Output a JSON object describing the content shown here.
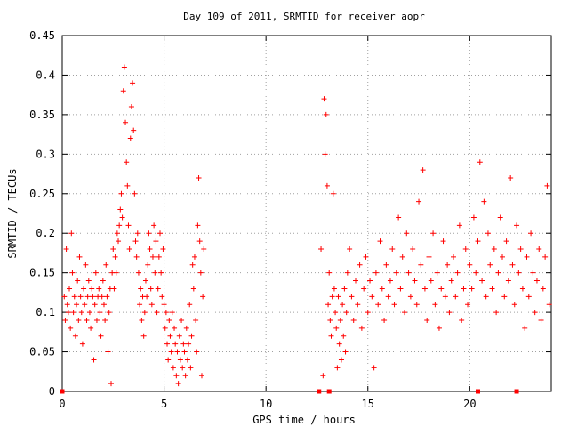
{
  "chart_data": {
    "type": "scatter",
    "title": "Day 109 of 2011, SRMTID for receiver aopr",
    "xlabel": "GPS time / hours",
    "ylabel": "SRMTID / TECUs",
    "xlim": [
      0,
      24
    ],
    "ylim": [
      0,
      0.45
    ],
    "x_ticks": [
      0,
      5,
      10,
      15,
      20
    ],
    "x_tick_labels": [
      "0",
      "5",
      "10",
      "15",
      "20"
    ],
    "y_ticks": [
      0,
      0.05,
      0.1,
      0.15,
      0.2,
      0.25,
      0.3,
      0.35,
      0.4,
      0.45
    ],
    "y_tick_labels": [
      "0",
      "0.05",
      "0.1",
      "0.15",
      "0.2",
      "0.25",
      "0.3",
      "0.35",
      "0.4",
      "0.45"
    ],
    "grid": true,
    "marker": "+",
    "marker_color": "#ff0000",
    "square_markers_at_zero": [
      0.0,
      12.6,
      13.1,
      20.4,
      22.3
    ],
    "series": [
      {
        "values": [
          [
            0.1,
            0.12
          ],
          [
            0.15,
            0.09
          ],
          [
            0.2,
            0.18
          ],
          [
            0.25,
            0.11
          ],
          [
            0.3,
            0.1
          ],
          [
            0.35,
            0.13
          ],
          [
            0.4,
            0.08
          ],
          [
            0.45,
            0.2
          ],
          [
            0.5,
            0.15
          ],
          [
            0.55,
            0.1
          ],
          [
            0.6,
            0.12
          ],
          [
            0.65,
            0.07
          ],
          [
            0.7,
            0.11
          ],
          [
            0.75,
            0.14
          ],
          [
            0.8,
            0.09
          ],
          [
            0.85,
            0.17
          ],
          [
            0.9,
            0.12
          ],
          [
            0.95,
            0.1
          ],
          [
            1.0,
            0.06
          ],
          [
            1.05,
            0.13
          ],
          [
            1.1,
            0.11
          ],
          [
            1.15,
            0.16
          ],
          [
            1.2,
            0.09
          ],
          [
            1.25,
            0.12
          ],
          [
            1.3,
            0.14
          ],
          [
            1.35,
            0.1
          ],
          [
            1.4,
            0.08
          ],
          [
            1.45,
            0.13
          ],
          [
            1.5,
            0.12
          ],
          [
            1.55,
            0.04
          ],
          [
            1.6,
            0.11
          ],
          [
            1.65,
            0.15
          ],
          [
            1.7,
            0.09
          ],
          [
            1.75,
            0.12
          ],
          [
            1.8,
            0.13
          ],
          [
            1.85,
            0.1
          ],
          [
            1.9,
            0.07
          ],
          [
            1.95,
            0.12
          ],
          [
            2.0,
            0.14
          ],
          [
            2.05,
            0.11
          ],
          [
            2.1,
            0.09
          ],
          [
            2.15,
            0.16
          ],
          [
            2.2,
            0.12
          ],
          [
            2.25,
            0.05
          ],
          [
            2.3,
            0.1
          ],
          [
            2.35,
            0.13
          ],
          [
            2.4,
            0.01
          ],
          [
            2.45,
            0.15
          ],
          [
            2.5,
            0.18
          ],
          [
            2.55,
            0.13
          ],
          [
            2.6,
            0.17
          ],
          [
            2.65,
            0.15
          ],
          [
            2.7,
            0.2
          ],
          [
            2.75,
            0.19
          ],
          [
            2.8,
            0.21
          ],
          [
            2.85,
            0.23
          ],
          [
            2.9,
            0.25
          ],
          [
            2.95,
            0.22
          ],
          [
            3.0,
            0.38
          ],
          [
            3.05,
            0.41
          ],
          [
            3.1,
            0.34
          ],
          [
            3.15,
            0.29
          ],
          [
            3.2,
            0.26
          ],
          [
            3.25,
            0.21
          ],
          [
            3.3,
            0.18
          ],
          [
            3.35,
            0.32
          ],
          [
            3.4,
            0.36
          ],
          [
            3.45,
            0.39
          ],
          [
            3.5,
            0.33
          ],
          [
            3.55,
            0.25
          ],
          [
            3.6,
            0.19
          ],
          [
            3.65,
            0.17
          ],
          [
            3.7,
            0.2
          ],
          [
            3.75,
            0.15
          ],
          [
            3.8,
            0.11
          ],
          [
            3.85,
            0.13
          ],
          [
            3.9,
            0.09
          ],
          [
            3.95,
            0.12
          ],
          [
            4.0,
            0.07
          ],
          [
            4.05,
            0.1
          ],
          [
            4.1,
            0.14
          ],
          [
            4.15,
            0.12
          ],
          [
            4.2,
            0.16
          ],
          [
            4.25,
            0.2
          ],
          [
            4.3,
            0.18
          ],
          [
            4.35,
            0.13
          ],
          [
            4.4,
            0.11
          ],
          [
            4.45,
            0.17
          ],
          [
            4.5,
            0.21
          ],
          [
            4.55,
            0.15
          ],
          [
            4.6,
            0.19
          ],
          [
            4.65,
            0.1
          ],
          [
            4.7,
            0.13
          ],
          [
            4.75,
            0.17
          ],
          [
            4.8,
            0.2
          ],
          [
            4.85,
            0.15
          ],
          [
            4.9,
            0.12
          ],
          [
            4.95,
            0.18
          ],
          [
            5.0,
            0.11
          ],
          [
            5.05,
            0.08
          ],
          [
            5.1,
            0.1
          ],
          [
            5.15,
            0.06
          ],
          [
            5.2,
            0.04
          ],
          [
            5.25,
            0.09
          ],
          [
            5.3,
            0.07
          ],
          [
            5.35,
            0.05
          ],
          [
            5.4,
            0.1
          ],
          [
            5.45,
            0.03
          ],
          [
            5.5,
            0.08
          ],
          [
            5.55,
            0.06
          ],
          [
            5.6,
            0.02
          ],
          [
            5.65,
            0.05
          ],
          [
            5.7,
            0.01
          ],
          [
            5.75,
            0.07
          ],
          [
            5.8,
            0.04
          ],
          [
            5.85,
            0.09
          ],
          [
            5.9,
            0.03
          ],
          [
            5.95,
            0.06
          ],
          [
            6.0,
            0.05
          ],
          [
            6.05,
            0.02
          ],
          [
            6.1,
            0.08
          ],
          [
            6.15,
            0.04
          ],
          [
            6.2,
            0.06
          ],
          [
            6.25,
            0.11
          ],
          [
            6.3,
            0.03
          ],
          [
            6.35,
            0.07
          ],
          [
            6.4,
            0.16
          ],
          [
            6.45,
            0.13
          ],
          [
            6.5,
            0.17
          ],
          [
            6.55,
            0.09
          ],
          [
            6.6,
            0.05
          ],
          [
            6.65,
            0.21
          ],
          [
            6.7,
            0.27
          ],
          [
            6.75,
            0.19
          ],
          [
            6.8,
            0.15
          ],
          [
            6.85,
            0.02
          ],
          [
            6.9,
            0.12
          ],
          [
            6.95,
            0.18
          ],
          [
            12.7,
            0.18
          ],
          [
            12.8,
            0.02
          ],
          [
            12.85,
            0.37
          ],
          [
            12.9,
            0.3
          ],
          [
            12.95,
            0.35
          ],
          [
            13.0,
            0.26
          ],
          [
            13.05,
            0.11
          ],
          [
            13.1,
            0.15
          ],
          [
            13.15,
            0.09
          ],
          [
            13.2,
            0.07
          ],
          [
            13.25,
            0.12
          ],
          [
            13.3,
            0.25
          ],
          [
            13.35,
            0.13
          ],
          [
            13.4,
            0.1
          ],
          [
            13.45,
            0.08
          ],
          [
            13.5,
            0.03
          ],
          [
            13.55,
            0.12
          ],
          [
            13.6,
            0.06
          ],
          [
            13.65,
            0.09
          ],
          [
            13.7,
            0.04
          ],
          [
            13.75,
            0.11
          ],
          [
            13.8,
            0.07
          ],
          [
            13.85,
            0.13
          ],
          [
            13.9,
            0.05
          ],
          [
            13.95,
            0.1
          ],
          [
            14.0,
            0.15
          ],
          [
            14.1,
            0.18
          ],
          [
            14.2,
            0.12
          ],
          [
            14.3,
            0.09
          ],
          [
            14.4,
            0.14
          ],
          [
            14.5,
            0.11
          ],
          [
            14.6,
            0.16
          ],
          [
            14.7,
            0.08
          ],
          [
            14.8,
            0.13
          ],
          [
            14.9,
            0.17
          ],
          [
            15.0,
            0.1
          ],
          [
            15.1,
            0.14
          ],
          [
            15.2,
            0.12
          ],
          [
            15.3,
            0.03
          ],
          [
            15.4,
            0.15
          ],
          [
            15.5,
            0.11
          ],
          [
            15.6,
            0.19
          ],
          [
            15.7,
            0.13
          ],
          [
            15.8,
            0.09
          ],
          [
            15.9,
            0.16
          ],
          [
            16.0,
            0.12
          ],
          [
            16.1,
            0.14
          ],
          [
            16.2,
            0.18
          ],
          [
            16.3,
            0.11
          ],
          [
            16.4,
            0.15
          ],
          [
            16.5,
            0.22
          ],
          [
            16.6,
            0.13
          ],
          [
            16.7,
            0.17
          ],
          [
            16.8,
            0.1
          ],
          [
            16.9,
            0.2
          ],
          [
            17.0,
            0.15
          ],
          [
            17.1,
            0.12
          ],
          [
            17.2,
            0.18
          ],
          [
            17.3,
            0.14
          ],
          [
            17.4,
            0.11
          ],
          [
            17.5,
            0.24
          ],
          [
            17.6,
            0.16
          ],
          [
            17.7,
            0.28
          ],
          [
            17.8,
            0.13
          ],
          [
            17.9,
            0.09
          ],
          [
            18.0,
            0.17
          ],
          [
            18.1,
            0.14
          ],
          [
            18.2,
            0.2
          ],
          [
            18.3,
            0.11
          ],
          [
            18.4,
            0.15
          ],
          [
            18.5,
            0.08
          ],
          [
            18.6,
            0.13
          ],
          [
            18.7,
            0.19
          ],
          [
            18.8,
            0.12
          ],
          [
            18.9,
            0.16
          ],
          [
            19.0,
            0.1
          ],
          [
            19.1,
            0.14
          ],
          [
            19.2,
            0.17
          ],
          [
            19.3,
            0.12
          ],
          [
            19.4,
            0.15
          ],
          [
            19.5,
            0.21
          ],
          [
            19.6,
            0.09
          ],
          [
            19.7,
            0.13
          ],
          [
            19.8,
            0.18
          ],
          [
            19.9,
            0.11
          ],
          [
            20.0,
            0.16
          ],
          [
            20.1,
            0.13
          ],
          [
            20.2,
            0.22
          ],
          [
            20.3,
            0.15
          ],
          [
            20.4,
            0.19
          ],
          [
            20.5,
            0.29
          ],
          [
            20.6,
            0.14
          ],
          [
            20.7,
            0.24
          ],
          [
            20.8,
            0.12
          ],
          [
            20.9,
            0.2
          ],
          [
            21.0,
            0.16
          ],
          [
            21.1,
            0.13
          ],
          [
            21.2,
            0.18
          ],
          [
            21.3,
            0.1
          ],
          [
            21.4,
            0.15
          ],
          [
            21.5,
            0.22
          ],
          [
            21.6,
            0.17
          ],
          [
            21.7,
            0.12
          ],
          [
            21.8,
            0.19
          ],
          [
            21.9,
            0.14
          ],
          [
            22.0,
            0.27
          ],
          [
            22.1,
            0.16
          ],
          [
            22.2,
            0.11
          ],
          [
            22.3,
            0.21
          ],
          [
            22.4,
            0.15
          ],
          [
            22.5,
            0.18
          ],
          [
            22.6,
            0.13
          ],
          [
            22.7,
            0.08
          ],
          [
            22.8,
            0.17
          ],
          [
            22.9,
            0.12
          ],
          [
            23.0,
            0.2
          ],
          [
            23.1,
            0.15
          ],
          [
            23.2,
            0.1
          ],
          [
            23.3,
            0.14
          ],
          [
            23.4,
            0.18
          ],
          [
            23.5,
            0.09
          ],
          [
            23.6,
            0.13
          ],
          [
            23.7,
            0.17
          ],
          [
            23.8,
            0.26
          ],
          [
            23.9,
            0.11
          ]
        ]
      }
    ]
  }
}
